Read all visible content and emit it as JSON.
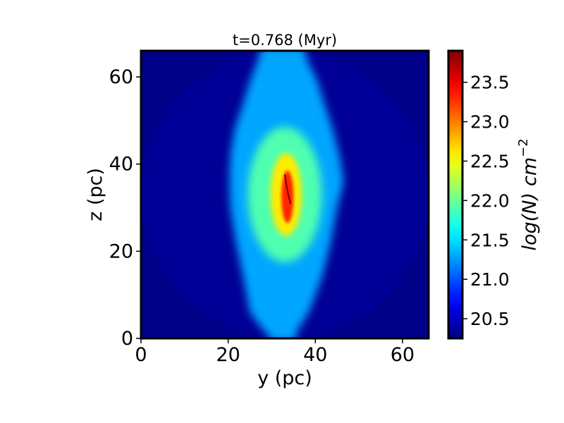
{
  "chart_data": {
    "type": "heatmap",
    "title": "t=0.768 (Myr)",
    "xlabel": "y (pc)",
    "ylabel": "z (pc)",
    "colorbar_label": "log(N) cm^-2",
    "colorbar_label_main": "log(N)",
    "colorbar_label_unit": "cm",
    "colorbar_label_exp": "−2",
    "colormap": "jet",
    "xlim": [
      0,
      66
    ],
    "ylim": [
      0,
      66
    ],
    "xticks": [
      0,
      20,
      40,
      60
    ],
    "yticks": [
      0,
      20,
      40,
      60
    ],
    "xtick_labels": [
      "0",
      "20",
      "40",
      "60"
    ],
    "ytick_labels": [
      "0",
      "20",
      "40",
      "60"
    ],
    "clim": [
      20.25,
      23.9
    ],
    "cticks": [
      20.5,
      21.0,
      21.5,
      22.0,
      22.5,
      23.0,
      23.5
    ],
    "ctick_labels": [
      "20.5",
      "21.0",
      "21.5",
      "22.0",
      "22.5",
      "23.0",
      "23.5"
    ],
    "features": {
      "background_level": 20.28,
      "halo": {
        "center": [
          33,
          33
        ],
        "radius": 33,
        "level": 20.33
      },
      "envelope": {
        "level": 21.3,
        "center_y": 33,
        "z_range": [
          0,
          66
        ],
        "profile": [
          {
            "z": 0.5,
            "left": 29.5,
            "right": 35.5
          },
          {
            "z": 2,
            "left": 28,
            "right": 36
          },
          {
            "z": 6,
            "left": 25,
            "right": 38.5
          },
          {
            "z": 14,
            "left": 23.5,
            "right": 41.5
          },
          {
            "z": 22,
            "left": 21.8,
            "right": 43.5
          },
          {
            "z": 30,
            "left": 20.5,
            "right": 45
          },
          {
            "z": 36,
            "left": 20.3,
            "right": 46.5
          },
          {
            "z": 42,
            "left": 20.5,
            "right": 45.5
          },
          {
            "z": 48,
            "left": 21.5,
            "right": 44
          },
          {
            "z": 54,
            "left": 23.5,
            "right": 42
          },
          {
            "z": 59,
            "left": 25,
            "right": 40.5
          },
          {
            "z": 63,
            "left": 26.5,
            "right": 38.5
          },
          {
            "z": 66,
            "left": 27.5,
            "right": 37.5
          }
        ]
      },
      "inner": {
        "level": 21.9,
        "center": [
          33,
          33
        ],
        "half_width": 8.5,
        "half_height": 15.5
      },
      "core": {
        "level": 22.6,
        "center": [
          33.3,
          33
        ],
        "half_width": 3.6,
        "half_height": 9.5
      },
      "filament": {
        "level": 23.3,
        "center": [
          33.6,
          32.5
        ],
        "half_width": 1.4,
        "half_height": 6
      },
      "spine": {
        "level": 23.85,
        "points": [
          [
            33.0,
            37.5
          ],
          [
            33.4,
            35.0
          ],
          [
            33.8,
            33.0
          ],
          [
            34.3,
            31.0
          ]
        ]
      }
    }
  }
}
